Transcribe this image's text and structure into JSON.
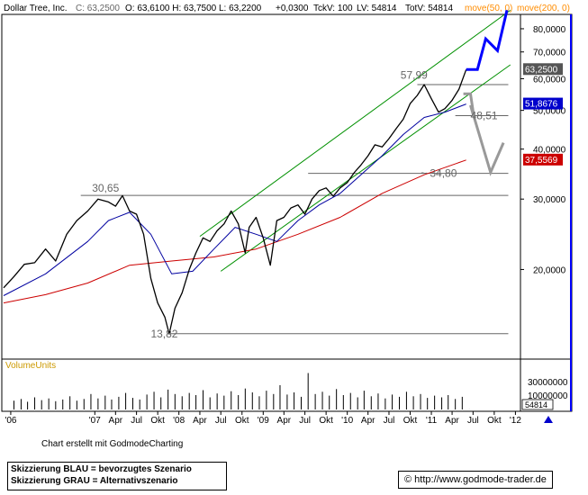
{
  "header": {
    "symbol": "Dollar Tree, Inc.",
    "close_label": "C: 63,2500",
    "ohlc": "O: 63,6100 H: 63,7500 L: 63,2200",
    "change": "+0,0300",
    "tick": "TckV: 100",
    "lv": "LV: 54814",
    "totv": "TotV: 54814",
    "ma50_label": "move(50, 0)",
    "ma200_label": "move(200, 0)"
  },
  "colors": {
    "price": "#000000",
    "ma50": "#0000a0",
    "ma200": "#cc0000",
    "channel": "#009000",
    "blue_scenario": "#0000ff",
    "grey_scenario": "#999999",
    "axis_bg": "#ffffff",
    "frame": "#0000ff",
    "volume": "#000000"
  },
  "footer": {
    "credit": "Chart erstellt mit GodmodeCharting",
    "legend_blue": "Skizzierung BLAU = bevorzugtes Szenario",
    "legend_grey": "Skizzierung GRAU = Alternativszenario",
    "url": "http://www.godmode-trader.de",
    "copyright_icon": "copyright-icon"
  },
  "volume_panel": {
    "label": "VolumeUnits",
    "ticks": [
      "30000000",
      "10000000"
    ],
    "last_value": "54814"
  },
  "chart_data": {
    "type": "line",
    "title": "Dollar Tree, Inc.",
    "y_scale": "log",
    "ylim": [
      12,
      86
    ],
    "y_ticks": [
      "80,0000",
      "70,0000",
      "60,0000",
      "50,0000",
      "40,0000",
      "30,0000",
      "20,0000"
    ],
    "y_tick_values": [
      80,
      70,
      60,
      50,
      40,
      30,
      20
    ],
    "x_range": [
      "2005-12-01",
      "2012-01-15"
    ],
    "x_ticks": [
      "'06",
      "'07",
      "Apr",
      "Jul",
      "Okt",
      "'08",
      "Apr",
      "Jul",
      "Okt",
      "'09",
      "Apr",
      "Jul",
      "Okt",
      "'10",
      "Apr",
      "Jul",
      "Okt",
      "'11",
      "Apr",
      "Jul",
      "Okt",
      "'12"
    ],
    "x_tick_dates": [
      "2006-01-01",
      "2007-01-01",
      "2007-04-01",
      "2007-07-01",
      "2007-10-01",
      "2008-01-01",
      "2008-04-01",
      "2008-07-01",
      "2008-10-01",
      "2009-01-01",
      "2009-04-01",
      "2009-07-01",
      "2009-10-01",
      "2010-01-01",
      "2010-04-01",
      "2010-07-01",
      "2010-10-01",
      "2011-01-01",
      "2011-04-01",
      "2011-07-01",
      "2011-10-01",
      "2012-01-01"
    ],
    "price_last": "63,2500",
    "ma50_last": "51,8676",
    "ma200_last": "37,5569",
    "series": [
      {
        "name": "Dollar Tree, Inc.",
        "x": [
          "2005-12-01",
          "2006-01-15",
          "2006-03-01",
          "2006-04-15",
          "2006-06-01",
          "2006-07-15",
          "2006-09-01",
          "2006-10-15",
          "2006-12-01",
          "2007-01-15",
          "2007-03-01",
          "2007-04-01",
          "2007-05-01",
          "2007-06-01",
          "2007-07-01",
          "2007-08-01",
          "2007-09-01",
          "2007-10-01",
          "2007-11-01",
          "2007-11-20",
          "2007-12-15",
          "2008-01-15",
          "2008-02-15",
          "2008-03-15",
          "2008-04-15",
          "2008-05-15",
          "2008-06-15",
          "2008-07-15",
          "2008-08-15",
          "2008-09-15",
          "2008-10-15",
          "2008-11-01",
          "2008-12-01",
          "2009-01-01",
          "2009-02-01",
          "2009-03-01",
          "2009-04-01",
          "2009-05-01",
          "2009-06-01",
          "2009-07-01",
          "2009-08-01",
          "2009-09-01",
          "2009-10-01",
          "2009-11-01",
          "2009-12-01",
          "2010-01-01",
          "2010-02-01",
          "2010-03-01",
          "2010-04-01",
          "2010-05-01",
          "2010-06-01",
          "2010-07-01",
          "2010-08-01",
          "2010-09-01",
          "2010-10-01",
          "2010-11-01",
          "2010-12-01",
          "2011-01-01",
          "2011-02-01",
          "2011-03-01",
          "2011-04-01",
          "2011-05-01",
          "2011-06-01"
        ],
        "values": [
          18.0,
          19.2,
          20.6,
          20.8,
          22.5,
          21.0,
          24.5,
          26.5,
          28.0,
          30.0,
          29.5,
          28.8,
          30.6,
          28.0,
          27.5,
          24.5,
          19.0,
          16.5,
          15.2,
          13.8,
          16.0,
          17.5,
          20.0,
          22.0,
          24.0,
          23.5,
          25.0,
          26.0,
          28.0,
          26.0,
          22.0,
          25.5,
          27.0,
          24.0,
          20.5,
          26.5,
          27.0,
          28.5,
          29.0,
          27.5,
          30.0,
          31.5,
          32.0,
          30.5,
          32.0,
          33.0,
          35.0,
          36.5,
          38.5,
          41.0,
          40.5,
          42.5,
          45.0,
          47.5,
          52.0,
          54.5,
          57.99,
          53.5,
          49.5,
          50.5,
          53.0,
          56.5,
          63.25
        ]
      },
      {
        "name": "move(50, 0)",
        "x": [
          "2005-12-01",
          "2006-06-01",
          "2006-12-01",
          "2007-03-01",
          "2007-06-01",
          "2007-09-01",
          "2007-12-01",
          "2008-03-01",
          "2008-06-01",
          "2008-09-01",
          "2008-12-01",
          "2009-03-01",
          "2009-06-01",
          "2009-09-01",
          "2009-12-01",
          "2010-03-01",
          "2010-06-01",
          "2010-09-01",
          "2010-12-01",
          "2011-03-01",
          "2011-06-01"
        ],
        "values": [
          17.2,
          19.5,
          23.5,
          26.5,
          27.8,
          24.5,
          19.5,
          19.8,
          22.5,
          25.5,
          24.5,
          23.5,
          26.5,
          29.0,
          31.0,
          34.5,
          38.5,
          43.5,
          48.0,
          49.5,
          51.87
        ]
      },
      {
        "name": "move(200, 0)",
        "x": [
          "2005-12-01",
          "2006-06-01",
          "2006-12-01",
          "2007-06-01",
          "2007-12-01",
          "2008-06-01",
          "2008-12-01",
          "2009-06-01",
          "2009-12-01",
          "2010-06-01",
          "2010-12-01",
          "2011-06-01"
        ],
        "values": [
          16.5,
          17.3,
          18.5,
          20.5,
          21.0,
          21.5,
          22.5,
          24.5,
          27.0,
          31.0,
          34.5,
          37.56
        ]
      }
    ],
    "annotations": [
      {
        "text": "57,99",
        "x": "2010-08-20",
        "y": 61.2
      },
      {
        "text": "48,51",
        "x": "2011-06-20",
        "y": 48.51
      },
      {
        "text": "~ 34,80",
        "x": "2010-11-15",
        "y": 34.8
      },
      {
        "text": "30,65",
        "x": "2006-12-20",
        "y": 32.0
      },
      {
        "text": "13,82",
        "x": "2007-09-01",
        "y": 13.82
      }
    ],
    "horizontal_lines": [
      {
        "y": 57.99,
        "from": "2010-11-01",
        "to": "2011-12-01"
      },
      {
        "y": 48.51,
        "from": "2011-04-15",
        "to": "2011-12-01"
      },
      {
        "y": 34.8,
        "from": "2009-07-15",
        "to": "2011-12-01"
      },
      {
        "y": 30.65,
        "from": "2006-11-01",
        "to": "2011-12-01"
      },
      {
        "y": 13.82,
        "from": "2007-11-10",
        "to": "2011-12-01"
      }
    ],
    "channel_lines": [
      {
        "from": [
          "2008-04-01",
          24.2
        ],
        "to": [
          "2011-12-10",
          89.0
        ]
      },
      {
        "from": [
          "2008-07-01",
          19.8
        ],
        "to": [
          "2011-12-10",
          65.0
        ]
      }
    ],
    "scenario_blue": {
      "x": [
        "2011-06-01",
        "2011-07-20",
        "2011-08-25",
        "2011-10-15",
        "2011-11-25"
      ],
      "values": [
        63.25,
        63.25,
        75.5,
        70.5,
        89.0
      ]
    },
    "scenario_grey": {
      "x": [
        "2011-05-20",
        "2011-06-20",
        "2011-07-05",
        "2011-06-20",
        "2011-09-15",
        "2011-11-10"
      ],
      "values": [
        55.0,
        55.0,
        48.0,
        51.5,
        35.0,
        41.5
      ]
    },
    "volume": {
      "x": [
        "2006-01",
        "2006-02",
        "2006-03",
        "2006-04",
        "2006-05",
        "2006-06",
        "2006-07",
        "2006-08",
        "2006-09",
        "2006-10",
        "2006-11",
        "2006-12",
        "2007-01",
        "2007-02",
        "2007-03",
        "2007-04",
        "2007-05",
        "2007-06",
        "2007-07",
        "2007-08",
        "2007-09",
        "2007-10",
        "2007-11",
        "2007-12",
        "2008-01",
        "2008-02",
        "2008-03",
        "2008-04",
        "2008-05",
        "2008-06",
        "2008-07",
        "2008-08",
        "2008-09",
        "2008-10",
        "2008-11",
        "2008-12",
        "2009-01",
        "2009-02",
        "2009-03",
        "2009-04",
        "2009-05",
        "2009-06",
        "2009-07",
        "2009-08",
        "2009-09",
        "2009-10",
        "2009-11",
        "2009-12",
        "2010-01",
        "2010-02",
        "2010-03",
        "2010-04",
        "2010-05",
        "2010-06",
        "2010-07",
        "2010-08",
        "2010-09",
        "2010-10",
        "2010-11",
        "2010-12",
        "2011-01",
        "2011-02",
        "2011-03",
        "2011-04",
        "2011-05",
        "2011-06"
      ],
      "values": [
        8000000,
        9500000,
        7000000,
        11000000,
        8500000,
        10000000,
        7500000,
        9000000,
        12000000,
        8000000,
        9500000,
        14000000,
        10000000,
        12500000,
        9000000,
        11500000,
        15000000,
        10500000,
        9000000,
        13500000,
        16000000,
        11000000,
        18000000,
        14000000,
        12000000,
        15000000,
        13000000,
        17500000,
        11000000,
        14500000,
        12500000,
        16500000,
        13000000,
        19000000,
        15500000,
        12000000,
        17000000,
        14000000,
        22000000,
        13500000,
        15500000,
        11500000,
        33000000,
        14000000,
        16000000,
        12500000,
        18500000,
        13000000,
        15000000,
        11000000,
        17000000,
        12000000,
        14500000,
        10000000,
        13500000,
        11500000,
        16000000,
        12000000,
        14000000,
        10500000,
        12500000,
        11000000,
        13000000,
        9500000,
        11500000,
        54814
      ]
    }
  }
}
